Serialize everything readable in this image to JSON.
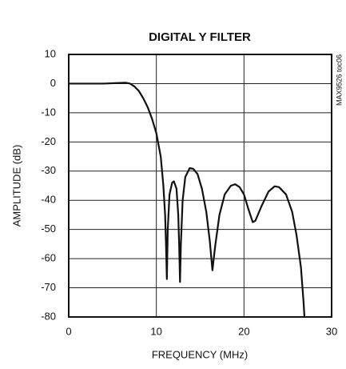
{
  "chart_data": {
    "type": "line",
    "title": "DIGITAL Y FILTER",
    "x_label": "FREQUENCY (MHz)",
    "y_label": "AMPLITUDE (dB)",
    "annotation": "MAX9526 toc06",
    "x": [
      0,
      2,
      4,
      5.5,
      6.5,
      7,
      7.5,
      8,
      8.5,
      9,
      9.5,
      10,
      10.5,
      10.8,
      11,
      11.1,
      11.2,
      11.3,
      11.5,
      11.8,
      12,
      12.3,
      12.5,
      12.6,
      12.7,
      12.8,
      13,
      13.3,
      13.8,
      14.2,
      14.7,
      15.2,
      15.7,
      16.1,
      16.4,
      16.7,
      17.2,
      17.8,
      18.5,
      19,
      19.5,
      20,
      20.5,
      21,
      21.3,
      22,
      22.8,
      23.5,
      24,
      24.8,
      25.5,
      26,
      26.5,
      26.8,
      26.9
    ],
    "series": [
      {
        "color": "#111111",
        "values": [
          0,
          0,
          0,
          0.2,
          0.3,
          0,
          -1,
          -2.5,
          -5,
          -8,
          -12,
          -17,
          -25,
          -35,
          -45,
          -55,
          -67,
          -50,
          -38,
          -34,
          -33.5,
          -36,
          -45,
          -55,
          -68,
          -55,
          -40,
          -32,
          -29,
          -29.2,
          -31,
          -36,
          -44,
          -54,
          -64,
          -56,
          -45,
          -38,
          -35,
          -34.5,
          -35.5,
          -38,
          -43,
          -47.5,
          -47,
          -42,
          -37,
          -35.2,
          -35.5,
          -38,
          -44,
          -52,
          -63,
          -75,
          -80
        ]
      }
    ],
    "xlim": [
      0,
      30
    ],
    "xticks": [
      0,
      10,
      20,
      30
    ],
    "ylim": [
      -80,
      10
    ],
    "yticks": [
      10,
      0,
      -10,
      -20,
      -30,
      -40,
      -50,
      -60,
      -70,
      -80
    ],
    "grid": true
  }
}
